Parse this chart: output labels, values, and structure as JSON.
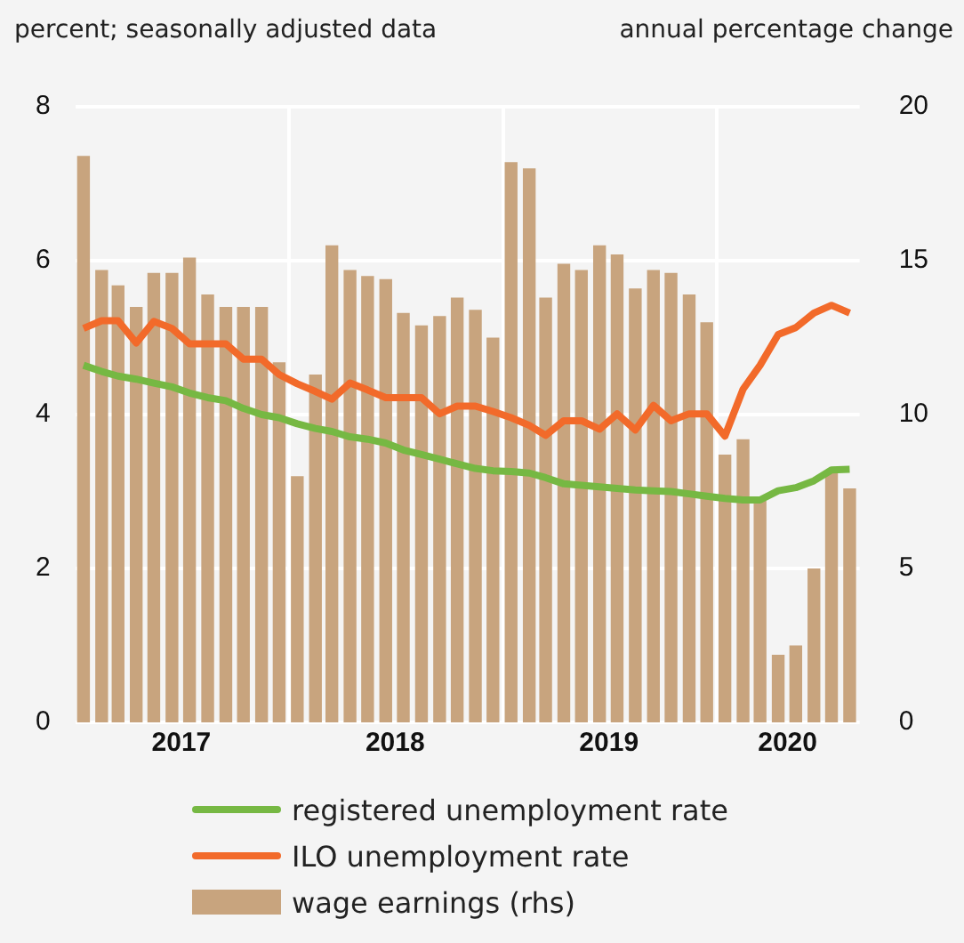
{
  "chart_data": {
    "type": "bar",
    "ylabel": "percent; seasonally adjusted data",
    "y2label": "annual percentage change",
    "x": [
      "2017-01-15",
      "2017-02-15",
      "2017-03-15",
      "2017-04-15",
      "2017-05-15",
      "2017-06-15",
      "2017-07-15",
      "2017-08-15",
      "2017-09-15",
      "2017-10-15",
      "2017-11-15",
      "2017-12-15",
      "2018-01-15",
      "2018-02-15",
      "2018-03-15",
      "2018-04-15",
      "2018-05-15",
      "2018-06-15",
      "2018-07-15",
      "2018-08-15",
      "2018-09-15",
      "2018-10-15",
      "2018-11-15",
      "2018-12-15",
      "2019-01-15",
      "2019-02-15",
      "2019-03-15",
      "2019-04-15",
      "2019-05-15",
      "2019-06-15",
      "2019-07-15",
      "2019-08-15",
      "2019-09-15",
      "2019-10-15",
      "2019-11-15",
      "2019-12-15",
      "2020-01-15",
      "2020-02-15",
      "2020-03-15",
      "2020-04-15",
      "2020-05-15",
      "2020-06-15",
      "2020-07-15",
      "2020-08-15"
    ],
    "xlim": [
      "2017-01-01",
      "2020-09-01"
    ],
    "xticks": [
      {
        "value": "2017-07-01",
        "label": "2017"
      },
      {
        "value": "2018-01-01",
        "label": null
      },
      {
        "value": "2018-07-01",
        "label": "2018"
      },
      {
        "value": "2019-01-01",
        "label": null
      },
      {
        "value": "2019-07-01",
        "label": "2019"
      },
      {
        "value": "2020-01-01",
        "label": null
      },
      {
        "value": "2020-05-01",
        "label": "2020"
      }
    ],
    "series": [
      {
        "name": "registered unemployment rate",
        "type": "line",
        "color": "#76b843",
        "values": [
          4.64,
          4.56,
          4.5,
          4.46,
          4.41,
          4.36,
          4.28,
          4.22,
          4.18,
          4.08,
          4.0,
          3.96,
          3.88,
          3.82,
          3.78,
          3.71,
          3.68,
          3.63,
          3.54,
          3.48,
          3.42,
          3.36,
          3.3,
          3.27,
          3.26,
          3.24,
          3.18,
          3.1,
          3.08,
          3.06,
          3.04,
          3.02,
          3.01,
          3.0,
          2.97,
          2.94,
          2.91,
          2.89,
          2.89,
          3.01,
          3.05,
          3.14,
          3.28,
          3.29
        ]
      },
      {
        "name": "ILO unemployment rate",
        "type": "line",
        "color": "#f26a2a",
        "values": [
          5.12,
          5.22,
          5.22,
          4.93,
          5.21,
          5.12,
          4.92,
          4.92,
          4.92,
          4.72,
          4.72,
          4.52,
          4.4,
          4.3,
          4.2,
          4.41,
          4.32,
          4.22,
          4.22,
          4.22,
          4.01,
          4.11,
          4.11,
          4.04,
          3.96,
          3.86,
          3.73,
          3.92,
          3.92,
          3.81,
          4.01,
          3.8,
          4.12,
          3.92,
          4.01,
          4.01,
          3.72,
          4.33,
          4.64,
          5.04,
          5.13,
          5.32,
          5.42,
          5.32
        ]
      },
      {
        "name": "wage earnings (rhs)",
        "axis": "y2",
        "color": "#c8a47e",
        "values": [
          18.4,
          14.7,
          14.2,
          13.5,
          14.6,
          14.6,
          15.1,
          13.9,
          13.5,
          13.5,
          13.5,
          11.7,
          8.0,
          11.3,
          15.5,
          14.7,
          14.5,
          14.4,
          13.3,
          12.9,
          13.2,
          13.8,
          13.4,
          12.5,
          18.2,
          18.0,
          13.8,
          14.9,
          14.7,
          15.5,
          15.2,
          14.1,
          14.7,
          14.6,
          13.9,
          13.0,
          8.7,
          9.2,
          7.2,
          2.2,
          2.5,
          5.0,
          8.1,
          7.6
        ]
      }
    ],
    "ylim": [
      0,
      8
    ],
    "yticks": [
      0,
      2,
      4,
      6,
      8
    ],
    "y2lim": [
      0,
      20
    ],
    "y2ticks": [
      0,
      5,
      10,
      15,
      20
    ],
    "grid": true,
    "legend": "bottom"
  }
}
